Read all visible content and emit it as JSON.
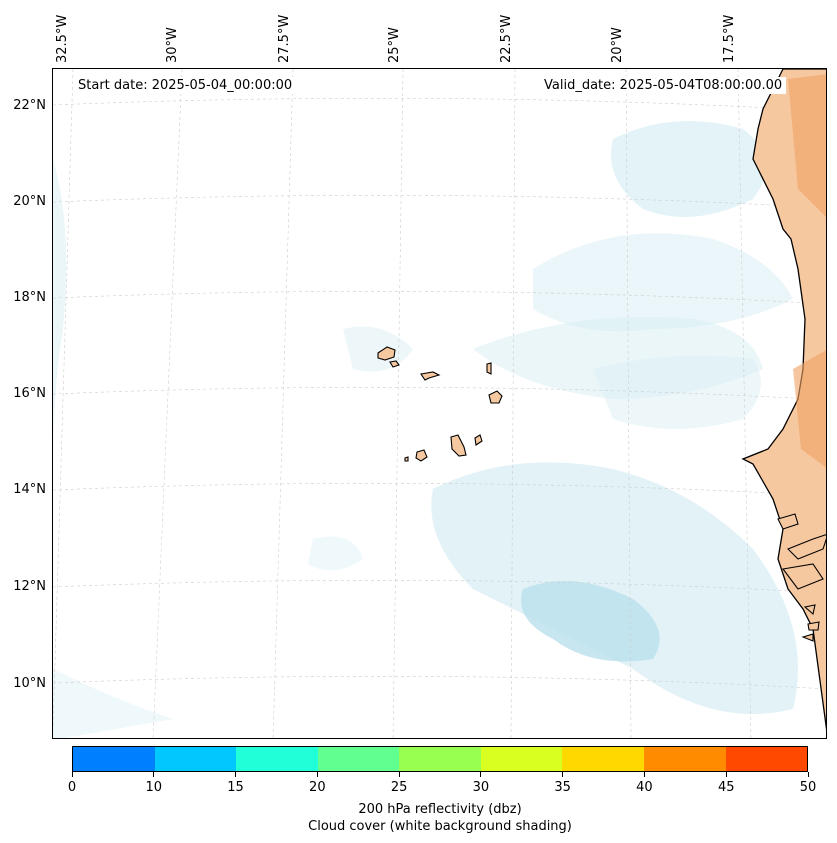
{
  "map": {
    "start_date": "Start date: 2025-05-04_00:00:00",
    "valid_date": "Valid_date: 2025-05-04T08:00:00.00",
    "lon_labels": [
      "32.5°W",
      "30°W",
      "27.5°W",
      "25°W",
      "22.5°W",
      "20°W",
      "17.5°W"
    ],
    "lat_labels": [
      "22°N",
      "20°N",
      "18°N",
      "16°N",
      "14°N",
      "12°N",
      "10°N"
    ],
    "colors": {
      "land": "#f6c8a0",
      "land_dark": "#f0a060",
      "cloud": "#d8eef4",
      "cloud_dense": "#b9e0ec",
      "coast": "#000000",
      "grid": "#cccccc"
    }
  },
  "colorbar": {
    "ticks": [
      "0",
      "10",
      "15",
      "20",
      "25",
      "30",
      "35",
      "40",
      "45",
      "50"
    ],
    "colors": [
      "#0080ff",
      "#00c8ff",
      "#20ffd8",
      "#60ff90",
      "#98ff50",
      "#d8ff20",
      "#ffd800",
      "#ff8c00",
      "#ff4800"
    ],
    "label_line1": "200 hPa reflectivity (dbz)",
    "label_line2": "Cloud cover (white background shading)"
  }
}
